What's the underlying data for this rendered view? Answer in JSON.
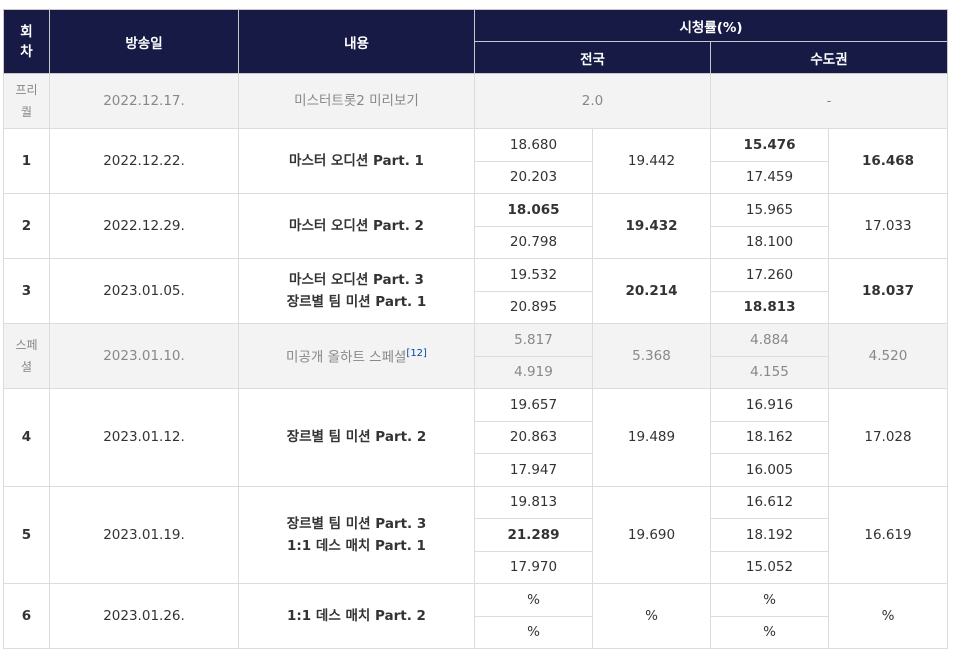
{
  "headers": {
    "episode": "회\n차",
    "airdate": "방송일",
    "content": "내용",
    "ratings": "시청률(%)",
    "nationwide": "전국",
    "capital": "수도권"
  },
  "prequel": {
    "ep": "프리\n퀄",
    "date": "2022.12.17.",
    "title": "미스터트롯2 미리보기",
    "nationwide": "2.0",
    "capital": "-"
  },
  "ep1": {
    "ep": "1",
    "date": "2022.12.22.",
    "title": "마스터 오디션 Part. 1",
    "nat": [
      "18.680",
      "20.203"
    ],
    "nat_avg": "19.442",
    "cap": [
      "15.476",
      "17.459"
    ],
    "cap_avg": "16.468"
  },
  "ep2": {
    "ep": "2",
    "date": "2022.12.29.",
    "title": "마스터 오디션 Part. 2",
    "nat": [
      "18.065",
      "20.798"
    ],
    "nat_avg": "19.432",
    "cap": [
      "15.965",
      "18.100"
    ],
    "cap_avg": "17.033"
  },
  "ep3": {
    "ep": "3",
    "date": "2023.01.05.",
    "title1": "마스터 오디션 Part. 3",
    "title2": "장르별 팀 미션 Part. 1",
    "nat": [
      "19.532",
      "20.895"
    ],
    "nat_avg": "20.214",
    "cap": [
      "17.260",
      "18.813"
    ],
    "cap_avg": "18.037"
  },
  "special": {
    "ep": "스페\n셜",
    "date": "2023.01.10.",
    "title": "미공개 올하트 스페셜",
    "footnote": "[12]",
    "nat": [
      "5.817",
      "4.919"
    ],
    "nat_avg": "5.368",
    "cap": [
      "4.884",
      "4.155"
    ],
    "cap_avg": "4.520"
  },
  "ep4": {
    "ep": "4",
    "date": "2023.01.12.",
    "title": "장르별 팀 미션 Part. 2",
    "nat": [
      "19.657",
      "20.863",
      "17.947"
    ],
    "nat_avg": "19.489",
    "cap": [
      "16.916",
      "18.162",
      "16.005"
    ],
    "cap_avg": "17.028"
  },
  "ep5": {
    "ep": "5",
    "date": "2023.01.19.",
    "title1": "장르별 팀 미션 Part. 3",
    "title2": "1:1 데스 매치 Part. 1",
    "nat": [
      "19.813",
      "21.289",
      "17.970"
    ],
    "nat_avg": "19.690",
    "cap": [
      "16.612",
      "18.192",
      "15.052"
    ],
    "cap_avg": "16.619"
  },
  "ep6": {
    "ep": "6",
    "date": "2023.01.26.",
    "title": "1:1 데스 매치 Part. 2",
    "nat": [
      "%",
      "%"
    ],
    "nat_avg": "%",
    "cap": [
      "%",
      "%"
    ],
    "cap_avg": "%"
  },
  "colors": {
    "header_bg": "#161a44",
    "highest": "#ff0000",
    "lowest": "#0000ff",
    "special_bg": "#f3f3f3"
  }
}
